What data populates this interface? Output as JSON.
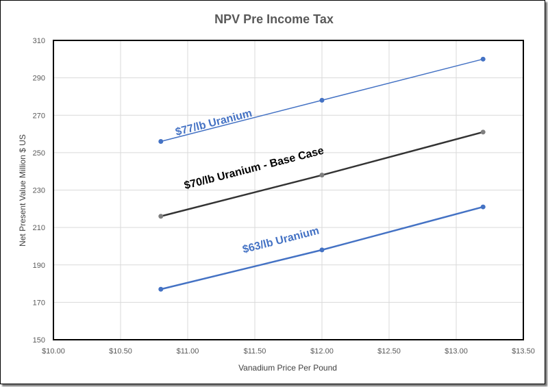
{
  "chart_data": {
    "type": "line",
    "title": "NPV Pre Income Tax",
    "xlabel": "Vanadium Price Per Pound",
    "ylabel": "Net Present Value Million $ US",
    "xlim": [
      10.0,
      13.5
    ],
    "ylim": [
      150,
      310
    ],
    "x_ticks": [
      "$10.00",
      "$10.50",
      "$11.00",
      "$11.50",
      "$12.00",
      "$12.50",
      "$13.00",
      "$13.50"
    ],
    "y_ticks": [
      "310",
      "290",
      "270",
      "250",
      "230",
      "210",
      "190",
      "170",
      "150"
    ],
    "x": [
      10.8,
      12.0,
      13.2
    ],
    "series": [
      {
        "name": "$77/lb Uranium",
        "values": [
          256,
          278,
          300
        ],
        "color": "#4472C4"
      },
      {
        "name": "$70/lb Uranium - Base Case",
        "values": [
          216,
          238,
          261
        ],
        "color": "#333333"
      },
      {
        "name": "$63/lb Uranium",
        "values": [
          177,
          198,
          221
        ],
        "color": "#4472C4"
      }
    ],
    "annotations": [
      {
        "text": "$77/lb Uranium",
        "color": "#4472C4"
      },
      {
        "text": "$70/lb Uranium - Base Case",
        "color": "#000000"
      },
      {
        "text": "$63/lb Uranium",
        "color": "#4472C4"
      }
    ],
    "grid": true,
    "legend": "none"
  }
}
